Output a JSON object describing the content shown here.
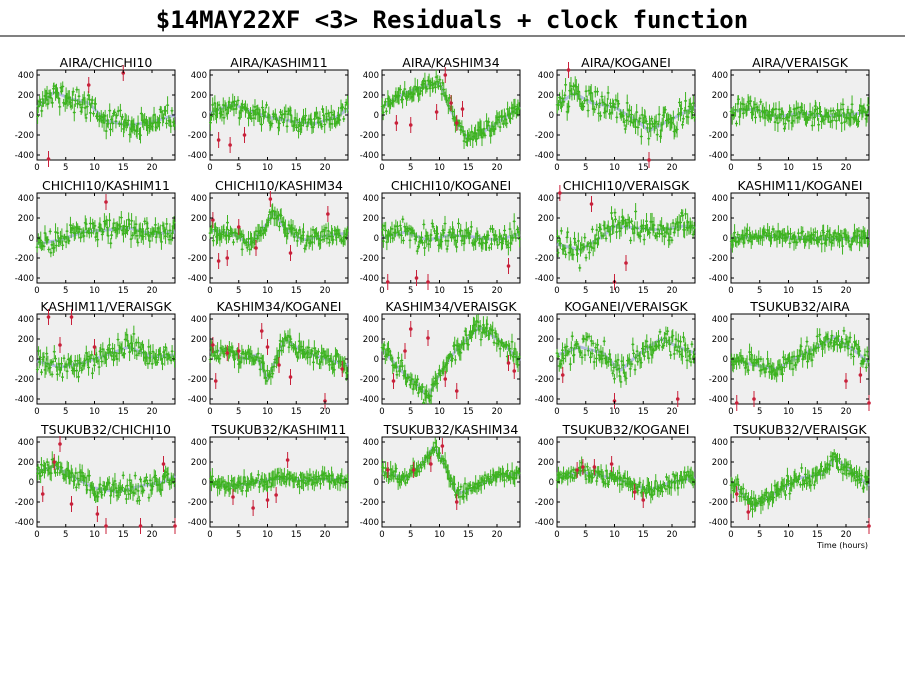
{
  "title": "$14MAY22XF <3> Residuals + clock function",
  "colors": {
    "residual": "#3db320",
    "outlier": "#c8203a",
    "clock": "#9aa6d8",
    "panel_bg": "#efefef"
  },
  "chart_data": {
    "type": "scatter",
    "xlabel": "Time (hours)",
    "ylabel": "",
    "xlim": [
      0,
      24
    ],
    "ylim": [
      -450,
      450
    ],
    "xticks": [
      0,
      5,
      10,
      15,
      20
    ],
    "yticks": [
      -400,
      -200,
      0,
      200,
      400
    ],
    "panels": [
      {
        "name": "AIRA/CHICHI10",
        "n": 130,
        "seed": 11,
        "noise": 95,
        "trend": [
          [
            0,
            80
          ],
          [
            3,
            230
          ],
          [
            6,
            160
          ],
          [
            9,
            120
          ],
          [
            12,
            -60
          ],
          [
            16,
            -100
          ],
          [
            20,
            -70
          ],
          [
            24,
            0
          ]
        ],
        "outliers": [
          [
            2,
            -440
          ],
          [
            9,
            300
          ],
          [
            15,
            420
          ]
        ]
      },
      {
        "name": "AIRA/KASHIM11",
        "n": 130,
        "seed": 12,
        "noise": 90,
        "trend": [
          [
            0,
            20
          ],
          [
            4,
            110
          ],
          [
            7,
            40
          ],
          [
            10,
            -20
          ],
          [
            14,
            -60
          ],
          [
            18,
            -90
          ],
          [
            22,
            -20
          ],
          [
            24,
            60
          ]
        ],
        "outliers": [
          [
            1.5,
            -250
          ],
          [
            3.5,
            -300
          ],
          [
            6,
            -200
          ]
        ]
      },
      {
        "name": "AIRA/KASHIM34",
        "n": 130,
        "seed": 13,
        "noise": 70,
        "trend": [
          [
            0,
            80
          ],
          [
            4,
            220
          ],
          [
            8,
            300
          ],
          [
            10,
            320
          ],
          [
            12,
            40
          ],
          [
            15,
            -250
          ],
          [
            19,
            -120
          ],
          [
            24,
            80
          ]
        ],
        "outliers": [
          [
            2.5,
            -80
          ],
          [
            11,
            400
          ],
          [
            12,
            120
          ],
          [
            13,
            -80
          ],
          [
            14,
            60
          ],
          [
            5,
            -100
          ],
          [
            9.5,
            30
          ]
        ]
      },
      {
        "name": "AIRA/KOGANEI",
        "n": 130,
        "seed": 14,
        "noise": 110,
        "trend": [
          [
            0,
            100
          ],
          [
            3,
            220
          ],
          [
            6,
            120
          ],
          [
            10,
            80
          ],
          [
            14,
            -60
          ],
          [
            16,
            -160
          ],
          [
            20,
            -40
          ],
          [
            24,
            80
          ]
        ],
        "outliers": [
          [
            2,
            470
          ],
          [
            16,
            -450
          ]
        ]
      },
      {
        "name": "AIRA/VERAISGK",
        "n": 130,
        "seed": 15,
        "noise": 95,
        "trend": [
          [
            0,
            40
          ],
          [
            4,
            60
          ],
          [
            8,
            -20
          ],
          [
            12,
            20
          ],
          [
            16,
            -10
          ],
          [
            20,
            0
          ],
          [
            24,
            30
          ]
        ],
        "outliers": []
      },
      {
        "name": "CHICHI10/KASHIM11",
        "n": 130,
        "seed": 21,
        "noise": 90,
        "trend": [
          [
            0,
            -60
          ],
          [
            4,
            -20
          ],
          [
            8,
            60
          ],
          [
            12,
            80
          ],
          [
            16,
            100
          ],
          [
            20,
            40
          ],
          [
            24,
            60
          ]
        ],
        "outliers": [
          [
            12,
            360
          ]
        ]
      },
      {
        "name": "CHICHI10/KASHIM34",
        "n": 130,
        "seed": 22,
        "noise": 75,
        "trend": [
          [
            0,
            80
          ],
          [
            4,
            40
          ],
          [
            7,
            -60
          ],
          [
            10,
            150
          ],
          [
            11,
            260
          ],
          [
            13,
            100
          ],
          [
            16,
            -20
          ],
          [
            20,
            20
          ],
          [
            24,
            50
          ]
        ],
        "outliers": [
          [
            0.5,
            180
          ],
          [
            1.5,
            -230
          ],
          [
            3,
            -200
          ],
          [
            5,
            110
          ],
          [
            8,
            -100
          ],
          [
            10.5,
            390
          ],
          [
            14,
            -150
          ],
          [
            20.5,
            240
          ]
        ]
      },
      {
        "name": "CHICHI10/KOGANEI",
        "n": 130,
        "seed": 23,
        "noise": 110,
        "trend": [
          [
            0,
            0
          ],
          [
            4,
            60
          ],
          [
            8,
            -20
          ],
          [
            12,
            30
          ],
          [
            16,
            10
          ],
          [
            20,
            -20
          ],
          [
            24,
            40
          ]
        ],
        "outliers": [
          [
            1,
            -440
          ],
          [
            8,
            -440
          ],
          [
            22,
            -280
          ],
          [
            6,
            -400
          ]
        ]
      },
      {
        "name": "CHICHI10/VERAISGK",
        "n": 130,
        "seed": 24,
        "noise": 115,
        "trend": [
          [
            0,
            -60
          ],
          [
            4,
            -120
          ],
          [
            8,
            20
          ],
          [
            10,
            120
          ],
          [
            14,
            100
          ],
          [
            18,
            80
          ],
          [
            22,
            120
          ],
          [
            24,
            100
          ]
        ],
        "outliers": [
          [
            0.5,
            480
          ],
          [
            6,
            340
          ],
          [
            10,
            -440
          ],
          [
            12,
            -250
          ]
        ]
      },
      {
        "name": "KASHIM11/KOGANEI",
        "n": 130,
        "seed": 25,
        "noise": 60,
        "trend": [
          [
            0,
            0
          ],
          [
            6,
            20
          ],
          [
            12,
            0
          ],
          [
            18,
            -10
          ],
          [
            24,
            10
          ]
        ],
        "outliers": []
      },
      {
        "name": "KASHIM11/VERAISGK",
        "n": 130,
        "seed": 31,
        "noise": 95,
        "trend": [
          [
            0,
            -20
          ],
          [
            4,
            -80
          ],
          [
            8,
            -40
          ],
          [
            12,
            40
          ],
          [
            16,
            120
          ],
          [
            20,
            20
          ],
          [
            24,
            40
          ]
        ],
        "outliers": [
          [
            2,
            420
          ],
          [
            4,
            140
          ],
          [
            6,
            420
          ],
          [
            10,
            120
          ]
        ]
      },
      {
        "name": "KASHIM34/KOGANEI",
        "n": 130,
        "seed": 32,
        "noise": 70,
        "trend": [
          [
            0,
            60
          ],
          [
            3,
            100
          ],
          [
            6,
            0
          ],
          [
            8,
            40
          ],
          [
            10,
            -200
          ],
          [
            13,
            200
          ],
          [
            16,
            80
          ],
          [
            20,
            0
          ],
          [
            24,
            -60
          ]
        ],
        "outliers": [
          [
            0.5,
            140
          ],
          [
            1,
            -220
          ],
          [
            3,
            60
          ],
          [
            5,
            80
          ],
          [
            9,
            280
          ],
          [
            10,
            120
          ],
          [
            12,
            -60
          ],
          [
            14,
            -180
          ],
          [
            20,
            -420
          ],
          [
            23,
            -100
          ]
        ]
      },
      {
        "name": "KASHIM34/VERAISGK",
        "n": 130,
        "seed": 33,
        "noise": 75,
        "trend": [
          [
            0,
            100
          ],
          [
            3,
            -100
          ],
          [
            6,
            -250
          ],
          [
            8,
            -380
          ],
          [
            10,
            -150
          ],
          [
            13,
            100
          ],
          [
            17,
            320
          ],
          [
            21,
            160
          ],
          [
            24,
            -20
          ]
        ],
        "outliers": [
          [
            2,
            -220
          ],
          [
            4,
            80
          ],
          [
            5,
            300
          ],
          [
            8,
            210
          ],
          [
            11,
            -200
          ],
          [
            13,
            -320
          ],
          [
            22,
            -40
          ],
          [
            23,
            -120
          ]
        ]
      },
      {
        "name": "KOGANEI/VERAISGK",
        "n": 130,
        "seed": 34,
        "noise": 110,
        "trend": [
          [
            0,
            40
          ],
          [
            4,
            120
          ],
          [
            8,
            60
          ],
          [
            11,
            -120
          ],
          [
            14,
            40
          ],
          [
            18,
            200
          ],
          [
            22,
            100
          ],
          [
            24,
            60
          ]
        ],
        "outliers": [
          [
            1,
            -160
          ],
          [
            10,
            -420
          ],
          [
            21,
            -400
          ]
        ]
      },
      {
        "name": "TSUKUB32/AIRA",
        "n": 130,
        "seed": 35,
        "noise": 85,
        "trend": [
          [
            0,
            0
          ],
          [
            4,
            -60
          ],
          [
            8,
            -100
          ],
          [
            11,
            0
          ],
          [
            15,
            120
          ],
          [
            18,
            220
          ],
          [
            22,
            60
          ],
          [
            24,
            -40
          ]
        ],
        "outliers": [
          [
            1,
            -440
          ],
          [
            4,
            -400
          ],
          [
            20,
            -220
          ],
          [
            22.5,
            -160
          ],
          [
            24,
            -440
          ]
        ]
      },
      {
        "name": "TSUKUB32/CHICHI10",
        "n": 130,
        "seed": 41,
        "noise": 90,
        "trend": [
          [
            0,
            100
          ],
          [
            3,
            160
          ],
          [
            6,
            60
          ],
          [
            10,
            -60
          ],
          [
            14,
            -100
          ],
          [
            18,
            -40
          ],
          [
            22,
            0
          ],
          [
            24,
            60
          ]
        ],
        "outliers": [
          [
            1,
            -120
          ],
          [
            3,
            200
          ],
          [
            4,
            380
          ],
          [
            6,
            -220
          ],
          [
            10.5,
            -320
          ],
          [
            12,
            -440
          ],
          [
            18,
            -440
          ],
          [
            22,
            180
          ],
          [
            24,
            -440
          ]
        ]
      },
      {
        "name": "TSUKUB32/KASHIM11",
        "n": 130,
        "seed": 42,
        "noise": 55,
        "trend": [
          [
            0,
            -20
          ],
          [
            4,
            -40
          ],
          [
            8,
            0
          ],
          [
            12,
            40
          ],
          [
            16,
            20
          ],
          [
            20,
            30
          ],
          [
            24,
            20
          ]
        ],
        "outliers": [
          [
            4,
            -150
          ],
          [
            7.5,
            -260
          ],
          [
            10,
            -180
          ],
          [
            11.5,
            -130
          ],
          [
            13.5,
            220
          ]
        ]
      },
      {
        "name": "TSUKUB32/KASHIM34",
        "n": 130,
        "seed": 43,
        "noise": 55,
        "trend": [
          [
            0,
            100
          ],
          [
            4,
            40
          ],
          [
            7,
            180
          ],
          [
            9,
            360
          ],
          [
            11,
            160
          ],
          [
            13,
            -120
          ],
          [
            16,
            -60
          ],
          [
            20,
            60
          ],
          [
            24,
            80
          ]
        ],
        "outliers": [
          [
            1,
            120
          ],
          [
            5.5,
            120
          ],
          [
            8.5,
            180
          ],
          [
            10.5,
            360
          ],
          [
            13,
            -200
          ]
        ]
      },
      {
        "name": "TSUKUB32/KOGANEI",
        "n": 130,
        "seed": 44,
        "noise": 65,
        "trend": [
          [
            0,
            40
          ],
          [
            4,
            100
          ],
          [
            8,
            60
          ],
          [
            12,
            0
          ],
          [
            16,
            -80
          ],
          [
            20,
            0
          ],
          [
            24,
            40
          ]
        ],
        "outliers": [
          [
            3.5,
            120
          ],
          [
            4.5,
            150
          ],
          [
            6.5,
            150
          ],
          [
            9.5,
            180
          ],
          [
            13.5,
            -100
          ],
          [
            15,
            -180
          ]
        ]
      },
      {
        "name": "TSUKUB32/VERAISGK",
        "n": 130,
        "seed": 45,
        "noise": 75,
        "trend": [
          [
            0,
            0
          ],
          [
            4,
            -240
          ],
          [
            8,
            -100
          ],
          [
            12,
            40
          ],
          [
            16,
            80
          ],
          [
            18,
            240
          ],
          [
            22,
            60
          ],
          [
            24,
            -40
          ]
        ],
        "outliers": [
          [
            1,
            -120
          ],
          [
            3,
            -300
          ],
          [
            24,
            -440
          ]
        ]
      }
    ]
  }
}
